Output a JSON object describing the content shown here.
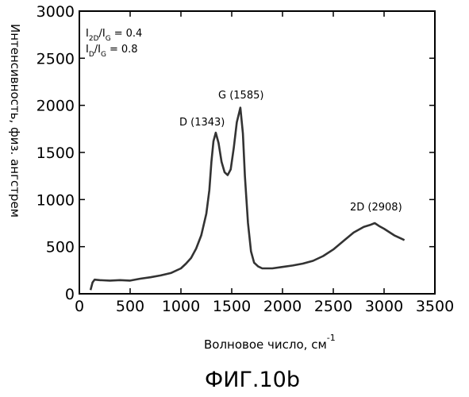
{
  "chart_data": {
    "type": "line",
    "xlabel": "Волновое число, см",
    "xlabel_superscript": "-1",
    "ylabel": "Интенсивность, физ. ангстрем",
    "xlim": [
      0,
      3500
    ],
    "ylim": [
      0,
      3000
    ],
    "x_ticks": [
      0,
      500,
      1000,
      1500,
      2000,
      2500,
      3000,
      3500
    ],
    "y_ticks": [
      0,
      500,
      1000,
      1500,
      2000,
      2500,
      3000
    ],
    "grid": false,
    "ratios": [
      {
        "numerator": "I",
        "numerator_sub": "2D",
        "denominator": "I",
        "denominator_sub": "G",
        "relation": "=",
        "value": "0.4"
      },
      {
        "numerator": "I",
        "numerator_sub": "D",
        "denominator": "I",
        "denominator_sub": "G",
        "relation": "=",
        "value": "0.8"
      }
    ],
    "annotations": [
      {
        "text": "D (1343)",
        "x": 1343,
        "y": 1710
      },
      {
        "text": "G (1585)",
        "x": 1585,
        "y": 1975
      },
      {
        "text": "2D (2908)",
        "x": 2908,
        "y": 750
      }
    ],
    "series": [
      {
        "color": "#333333",
        "points": [
          [
            110,
            40
          ],
          [
            130,
            120
          ],
          [
            150,
            150
          ],
          [
            200,
            145
          ],
          [
            300,
            140
          ],
          [
            400,
            145
          ],
          [
            500,
            140
          ],
          [
            600,
            160
          ],
          [
            700,
            175
          ],
          [
            800,
            195
          ],
          [
            900,
            220
          ],
          [
            1000,
            270
          ],
          [
            1050,
            320
          ],
          [
            1100,
            380
          ],
          [
            1150,
            480
          ],
          [
            1200,
            620
          ],
          [
            1250,
            850
          ],
          [
            1280,
            1100
          ],
          [
            1300,
            1400
          ],
          [
            1320,
            1620
          ],
          [
            1343,
            1710
          ],
          [
            1370,
            1600
          ],
          [
            1400,
            1400
          ],
          [
            1430,
            1290
          ],
          [
            1460,
            1260
          ],
          [
            1490,
            1320
          ],
          [
            1520,
            1550
          ],
          [
            1550,
            1820
          ],
          [
            1585,
            1975
          ],
          [
            1610,
            1700
          ],
          [
            1630,
            1250
          ],
          [
            1660,
            750
          ],
          [
            1690,
            450
          ],
          [
            1720,
            330
          ],
          [
            1760,
            290
          ],
          [
            1800,
            270
          ],
          [
            1900,
            270
          ],
          [
            2000,
            285
          ],
          [
            2100,
            300
          ],
          [
            2200,
            320
          ],
          [
            2300,
            350
          ],
          [
            2400,
            400
          ],
          [
            2500,
            470
          ],
          [
            2600,
            560
          ],
          [
            2700,
            650
          ],
          [
            2800,
            710
          ],
          [
            2860,
            730
          ],
          [
            2908,
            750
          ],
          [
            2950,
            720
          ],
          [
            3000,
            690
          ],
          [
            3100,
            620
          ],
          [
            3200,
            570
          ]
        ]
      }
    ]
  },
  "figure_caption": "ФИГ.10b",
  "colors": {
    "line": "#333333",
    "axes": "#000000",
    "background": "#ffffff"
  }
}
